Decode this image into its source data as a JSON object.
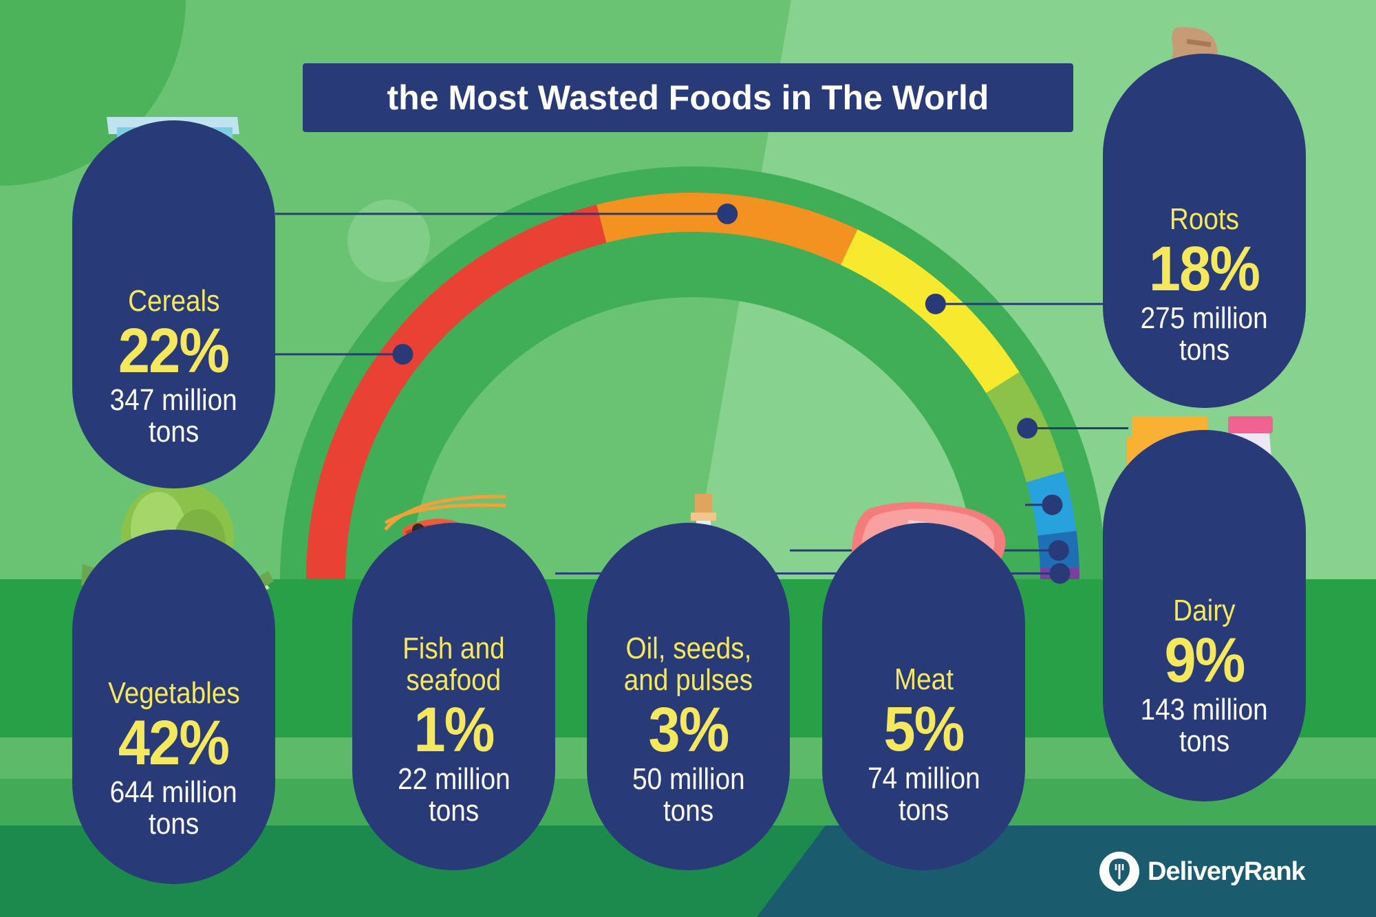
{
  "title": "the Most Wasted Foods in The World",
  "brand": "DeliveryRank",
  "chart_data": {
    "type": "gauge",
    "title": "the Most Wasted Foods in The World",
    "unit": "%",
    "categories": [
      {
        "name": "Vegetables",
        "percent": 42,
        "amount": "644 million tons",
        "amount_million_tons": 644,
        "color": "#e94235"
      },
      {
        "name": "Cereals",
        "percent": 22,
        "amount": "347 million tons",
        "amount_million_tons": 347,
        "color": "#f39221"
      },
      {
        "name": "Roots",
        "percent": 18,
        "amount": "275 million tons",
        "amount_million_tons": 275,
        "color": "#f7e92e"
      },
      {
        "name": "Dairy",
        "percent": 9,
        "amount": "143 million tons",
        "amount_million_tons": 143,
        "color": "#8cc24a"
      },
      {
        "name": "Meat",
        "percent": 5,
        "amount": "74 million tons",
        "amount_million_tons": 74,
        "color": "#27a2dd"
      },
      {
        "name": "Oil, seeds, and pulses",
        "percent": 3,
        "amount": "50 million tons",
        "amount_million_tons": 50,
        "color": "#1e6fb5"
      },
      {
        "name": "Fish and seafood",
        "percent": 1,
        "amount": "22 million tons",
        "amount_million_tons": 22,
        "color": "#7b3ea1"
      }
    ]
  },
  "cards": {
    "cereals": {
      "name": "Cereals",
      "percent": "22%",
      "amount_line1": "347 million",
      "amount_line2": "tons"
    },
    "vegetables": {
      "name": "Vegetables",
      "percent": "42%",
      "amount_line1": "644 million",
      "amount_line2": "tons"
    },
    "fish": {
      "name_line1": "Fish and",
      "name_line2": "seafood",
      "percent": "1%",
      "amount_line1": "22 million",
      "amount_line2": "tons"
    },
    "oil": {
      "name_line1": "Oil, seeds,",
      "name_line2": "and pulses",
      "percent": "3%",
      "amount_line1": "50 million",
      "amount_line2": "tons"
    },
    "meat": {
      "name": "Meat",
      "percent": "5%",
      "amount_line1": "74 million",
      "amount_line2": "tons"
    },
    "roots": {
      "name": "Roots",
      "percent": "18%",
      "amount_line1": "275 million",
      "amount_line2": "tons"
    },
    "dairy": {
      "name": "Dairy",
      "percent": "9%",
      "amount_line1": "143 million",
      "amount_line2": "tons"
    }
  },
  "colors": {
    "navy": "#283a78",
    "accent_yellow": "#f6e85d",
    "bg_green": "#69c373",
    "bg_light_green": "#88d28f",
    "ground_green": "#2ba148"
  }
}
